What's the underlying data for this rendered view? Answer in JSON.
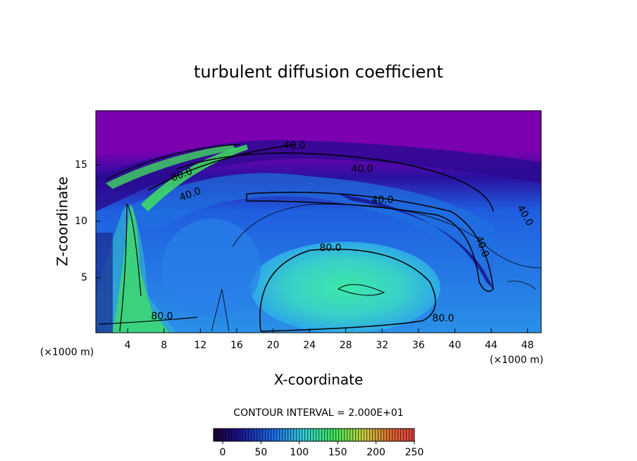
{
  "chart_data": {
    "type": "contour",
    "title": "turbulent diffusion coefficient",
    "x_label": "X-coordinate",
    "y_label": "Z-coordinate",
    "x_unit": "(×1000 m)",
    "y_unit": "(×1000 m)",
    "xlim": [
      0.5,
      49.5
    ],
    "ylim": [
      0.125,
      19.8
    ],
    "xticks": [
      4,
      8,
      12,
      16,
      20,
      24,
      28,
      32,
      36,
      40,
      44,
      48
    ],
    "yticks": [
      5,
      10,
      15
    ],
    "contour_labels": [
      {
        "value": 40,
        "label": "40.0"
      },
      {
        "value": 40,
        "label": "40.0"
      },
      {
        "value": 40,
        "label": "40.0"
      },
      {
        "value": 40,
        "label": "40.0"
      },
      {
        "value": 40,
        "label": "40.0"
      },
      {
        "value": 40,
        "label": "40.0"
      },
      {
        "value": 80,
        "label": "80.0"
      },
      {
        "value": 80,
        "label": "80.0"
      },
      {
        "value": 80,
        "label": "80.0"
      },
      {
        "value": 80,
        "label": "80.0"
      }
    ],
    "contour_interval": "CONTOUR INTERVAL = 2.000E+01",
    "colorbar": {
      "lim": [
        0,
        250
      ],
      "ticks": [
        0,
        50,
        100,
        150,
        200,
        250
      ]
    }
  }
}
